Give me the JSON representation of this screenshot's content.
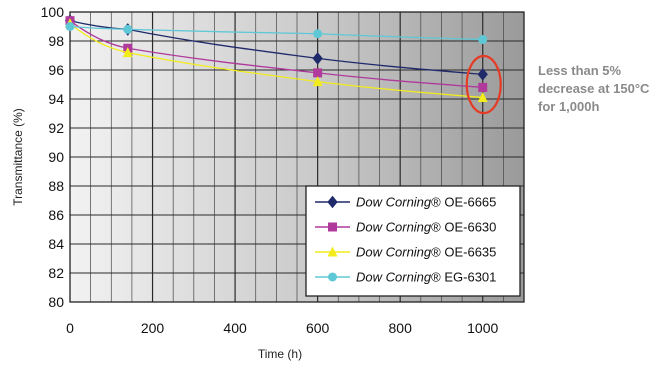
{
  "chart_data": {
    "type": "line",
    "xlabel": "Time (h)",
    "ylabel": "Transmittance (%)",
    "xlim": [
      0,
      1100
    ],
    "ylim": [
      80,
      100
    ],
    "xticks": [
      0,
      200,
      400,
      600,
      800,
      1000
    ],
    "yticks": [
      80,
      82,
      84,
      86,
      88,
      90,
      92,
      94,
      96,
      98,
      100
    ],
    "grid": "vertical-and-horizontal",
    "legend": "bottom-right",
    "series": [
      {
        "name": "Dow Corning® OE-6665",
        "brand": "Dow Corning",
        "model": "® OE-6665",
        "color": "#1f2a6b",
        "marker": "diamond",
        "x": [
          0,
          140,
          600,
          1000
        ],
        "y": [
          99.4,
          98.8,
          96.8,
          95.7
        ]
      },
      {
        "name": "Dow Corning® OE-6630",
        "brand": "Dow Corning",
        "model": "® OE-6630",
        "color": "#b03a9c",
        "marker": "square",
        "x": [
          0,
          140,
          600,
          1000
        ],
        "y": [
          99.4,
          97.5,
          95.8,
          94.8
        ]
      },
      {
        "name": "Dow Corning® OE-6635",
        "brand": "Dow Corning",
        "model": "® OE-6635",
        "color": "#f2ec1a",
        "marker": "triangle",
        "x": [
          0,
          140,
          600,
          1000
        ],
        "y": [
          99.2,
          97.2,
          95.2,
          94.1
        ]
      },
      {
        "name": "Dow Corning® EG-6301",
        "brand": "Dow Corning",
        "model": "® EG-6301",
        "color": "#5fc8d6",
        "marker": "circle",
        "x": [
          0,
          140,
          600,
          1000
        ],
        "y": [
          99.0,
          98.8,
          98.5,
          98.1
        ]
      }
    ],
    "highlight": {
      "x": 1000,
      "y": [
        94,
        96
      ],
      "color": "#e53a24"
    }
  },
  "annotation": {
    "line1": "Less than 5%",
    "line2": "decrease at 150°C",
    "line3": "for 1,000h"
  }
}
